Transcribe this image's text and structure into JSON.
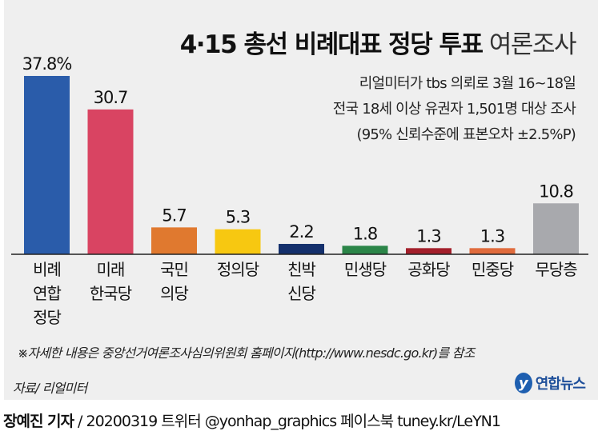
{
  "chart_data": {
    "type": "bar",
    "title_bold": "4·15 총선 비례대표 정당 투표",
    "title_light": "여론조사",
    "subtitle_lines": [
      "리얼미터가 tbs 의뢰로 3월 16~18일",
      "전국 18세 이상 유권자 1,501명 대상 조사",
      "(95% 신뢰수준에 표본오차 ±2.5%P)"
    ],
    "categories": [
      [
        "비례",
        "연합",
        "정당"
      ],
      [
        "미래",
        "한국당"
      ],
      [
        "국민",
        "의당"
      ],
      [
        "정의당"
      ],
      [
        "친박",
        "신당"
      ],
      [
        "민생당"
      ],
      [
        "공화당"
      ],
      [
        "민중당"
      ],
      [
        "무당층"
      ]
    ],
    "values": [
      37.8,
      30.7,
      5.7,
      5.3,
      2.2,
      1.8,
      1.3,
      1.3,
      10.8
    ],
    "value_labels": [
      "37.8%",
      "30.7",
      "5.7",
      "5.3",
      "2.2",
      "1.8",
      "1.3",
      "1.3",
      "10.8"
    ],
    "colors": [
      "#2a5caa",
      "#d94462",
      "#e0792f",
      "#f7c811",
      "#14306c",
      "#2b8548",
      "#a31f2b",
      "#e06b3c",
      "#a8a9ad"
    ],
    "unit": "%",
    "ylim": [
      0,
      40
    ],
    "grid": false
  },
  "footer": {
    "note": "※자세한 내용은 중앙선거여론조사심의위원회 홈페이지(http://www.nesdc.go.kr)를 참조",
    "source": "자료/ 리얼미터",
    "logo": "연합뉴스",
    "reporter": "장예진 기자",
    "credit": " / 20200319 트위터 @yonhap_graphics  페이스북 tuney.kr/LeYN1"
  }
}
